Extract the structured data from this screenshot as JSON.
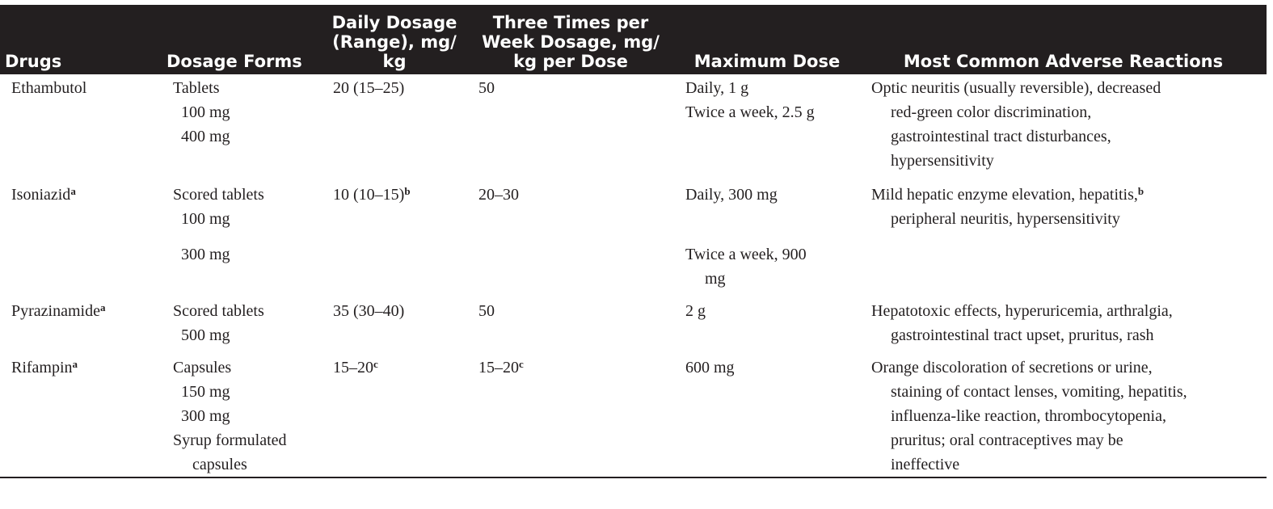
{
  "headers": {
    "drugs": "Drugs",
    "dosage_forms": "Dosage Forms",
    "daily_dosage": [
      "Daily Dosage",
      "(Range), mg/",
      "kg"
    ],
    "three_times": [
      "Three Times per",
      "Week Dosage, mg/",
      "kg per Dose"
    ],
    "maximum_dose": "Maximum Dose",
    "adverse": "Most Common Adverse Reactions"
  },
  "rows": [
    {
      "drug": "Ethambutol",
      "drug_sup": "",
      "forms": [
        "Tablets",
        "100 mg",
        "400 mg"
      ],
      "daily": "20 (15–25)",
      "daily_sup": "",
      "three": "50",
      "three_sup": "",
      "max": [
        "Daily, 1 g",
        "Twice a week, 2.5 g"
      ],
      "adverse_lines": [
        "Optic neuritis (usually reversible), decreased",
        "red-green color discrimination,",
        "gastrointestinal tract disturbances,",
        "hypersensitivity"
      ]
    },
    {
      "drug": "Isoniazid",
      "drug_sup": "a",
      "forms": [
        "Scored tablets",
        "100 mg",
        "300 mg"
      ],
      "daily": "10 (10–15)",
      "daily_sup": "b",
      "three": "20–30",
      "three_sup": "",
      "max": [
        "Daily, 300 mg",
        "Twice a week, 900",
        "mg"
      ],
      "adverse_lines": [
        "Mild hepatic enzyme elevation, hepatitis,",
        "peripheral neuritis, hypersensitivity"
      ],
      "adverse_sup": "b"
    },
    {
      "drug": "Pyrazinamide",
      "drug_sup": "a",
      "forms": [
        "Scored tablets",
        "500 mg"
      ],
      "daily": "35 (30–40)",
      "daily_sup": "",
      "three": "50",
      "three_sup": "",
      "max": [
        "2 g"
      ],
      "adverse_lines": [
        "Hepatotoxic effects, hyperuricemia, arthralgia,",
        "gastrointestinal tract upset, pruritus, rash"
      ]
    },
    {
      "drug": "Rifampin",
      "drug_sup": "a",
      "forms": [
        "Capsules",
        "150 mg",
        "300 mg",
        "Syrup formulated",
        "capsules"
      ],
      "daily": "15–20",
      "daily_sup": "c",
      "three": "15–20",
      "three_sup": "c",
      "max": [
        "600 mg"
      ],
      "adverse_lines": [
        "Orange discoloration of secretions or urine,",
        "staining of contact lenses, vomiting, hepatitis,",
        "influenza-like reaction, thrombocytopenia,",
        "pruritus; oral contraceptives may be",
        "ineffective"
      ]
    }
  ]
}
